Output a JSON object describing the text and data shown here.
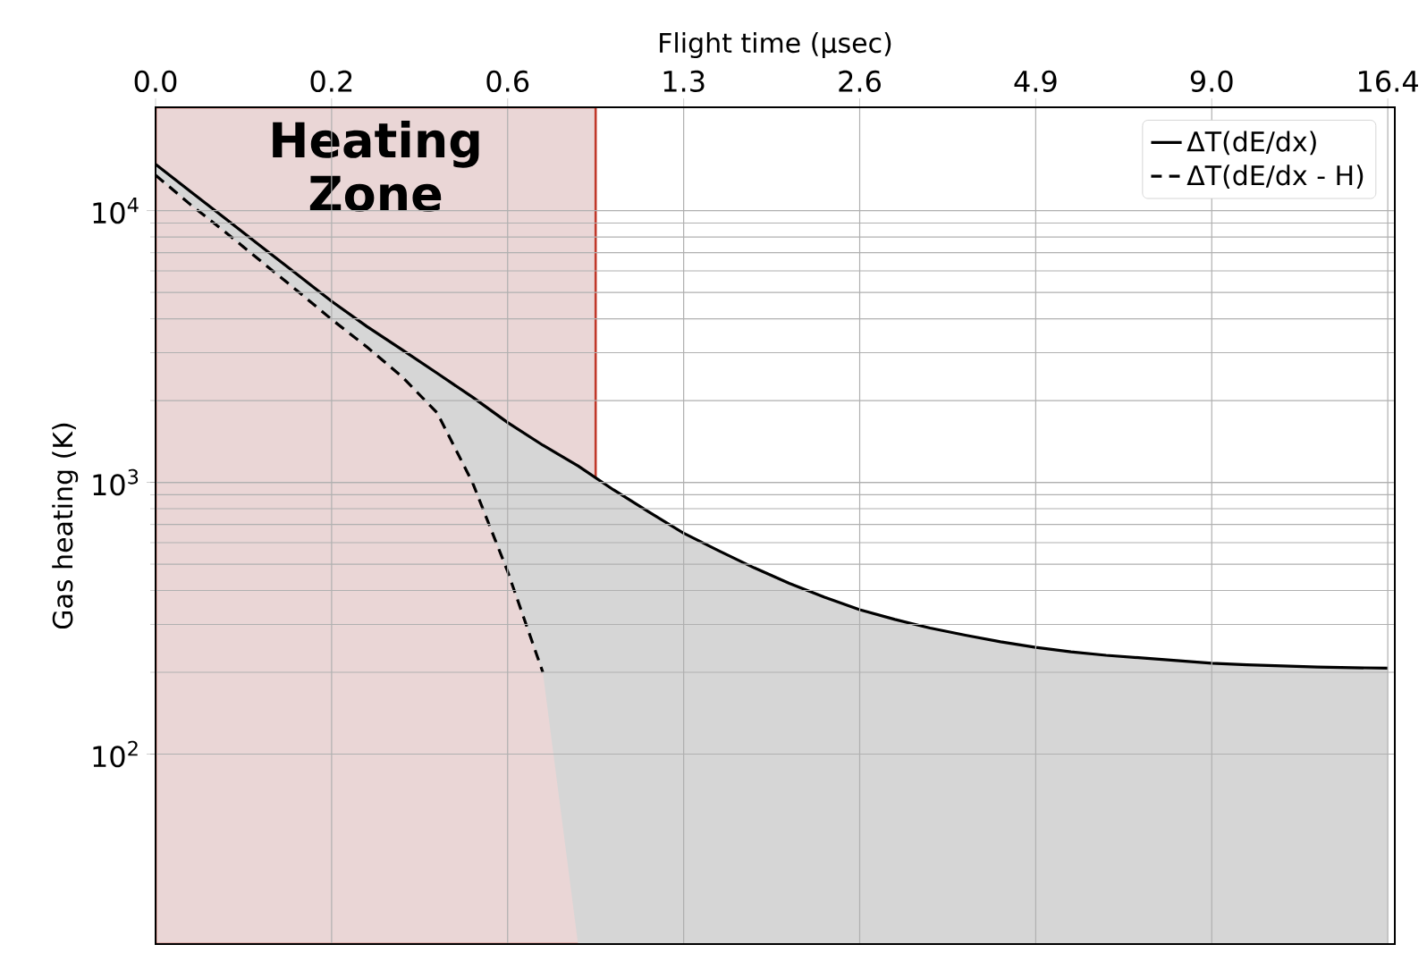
{
  "chart_data": {
    "type": "line",
    "xlabel": "Flight time (μsec)",
    "ylabel": "Gas heating (K)",
    "log": "y",
    "grid": true,
    "legend": "top right",
    "marker": "none",
    "categories": [
      "0.0",
      null,
      null,
      null,
      null,
      "0.2",
      null,
      null,
      null,
      null,
      "0.6",
      null,
      null,
      null,
      null,
      "1.3",
      null,
      null,
      null,
      null,
      "2.6",
      null,
      null,
      null,
      null,
      "4.9",
      null,
      null,
      null,
      null,
      "9.0",
      null,
      null,
      null,
      null,
      "16.4"
    ],
    "ylim": [
      20,
      24000
    ],
    "yticks": [
      {
        "value": 100,
        "label": "10$^{2}$"
      },
      {
        "value": 1000,
        "label": "10$^{3}$"
      },
      {
        "value": 10000,
        "label": "10$^{4}$"
      }
    ],
    "annotations": [
      "Heating Zone"
    ],
    "series": [
      {
        "name": "ΔT(dE/dx)",
        "color": "#000000",
        "line_style": "solid",
        "values": [
          14800,
          11740,
          9310,
          7380,
          5850,
          4640,
          3750,
          3080,
          2520,
          2060,
          1660,
          1370,
          1150,
          940,
          780,
          650,
          560,
          485,
          425,
          378,
          340,
          313,
          291,
          274,
          259,
          247,
          238,
          231,
          226,
          221,
          216,
          213,
          211,
          209,
          208,
          207
        ],
        "upper": [
          14800,
          11740,
          9310,
          7380,
          5850,
          4640,
          3750,
          3080,
          2520,
          2060,
          1660,
          1370,
          1150,
          940,
          780,
          650,
          560,
          485,
          425,
          378,
          340,
          313,
          291,
          274,
          259,
          247,
          238,
          231,
          226,
          221,
          216,
          213,
          211,
          209,
          208,
          207
        ],
        "lower": [
          13500,
          10500,
          8300,
          6500,
          5100,
          3980,
          3150,
          2450,
          1800,
          1000,
          470,
          200,
          20,
          20,
          20,
          20,
          20,
          20,
          20,
          20,
          20,
          20,
          20,
          20,
          20,
          20,
          20,
          20,
          20,
          20,
          20,
          20,
          20,
          20,
          20,
          20
        ]
      },
      {
        "name": "ΔT(dE/dx - H)",
        "color": "#000000",
        "line_style": "dashed",
        "values": [
          13500,
          10500,
          8300,
          6500,
          5100,
          3980,
          3150,
          2450,
          1800,
          1000,
          470,
          200,
          null,
          null,
          null,
          null,
          null,
          null,
          null,
          null,
          null,
          null,
          null,
          null,
          null,
          null,
          null,
          null,
          null,
          null,
          null,
          null,
          null,
          null,
          null,
          null
        ]
      }
    ]
  }
}
